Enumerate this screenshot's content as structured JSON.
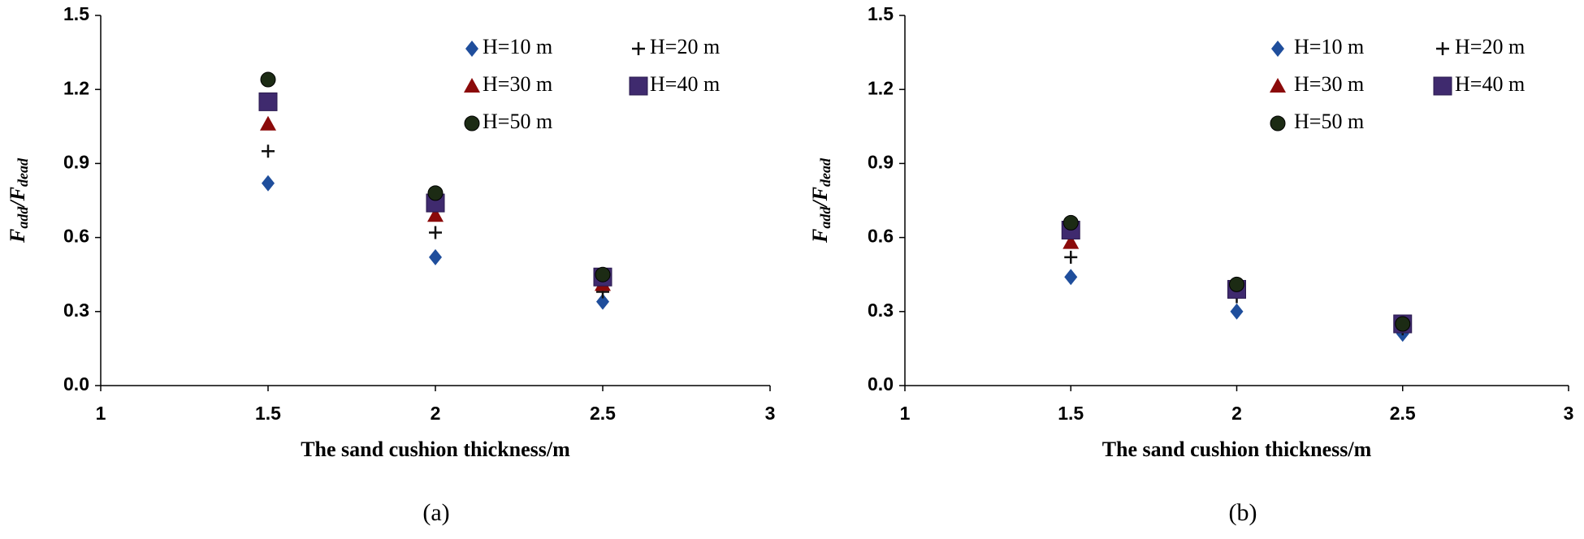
{
  "chart_data": [
    {
      "type": "scatter",
      "caption": "(a)",
      "xlabel": "The sand cushion thickness/m",
      "ylabel": [
        {
          "text": "F",
          "subscript": false
        },
        {
          "text": "add",
          "subscript": true
        },
        {
          "text": "/",
          "subscript": false
        },
        {
          "text": "F",
          "subscript": false
        },
        {
          "text": "dead",
          "subscript": true
        }
      ],
      "xlim": [
        1,
        3
      ],
      "xticks": [
        1,
        1.5,
        2,
        2.5,
        3
      ],
      "ylim": [
        0,
        1.5
      ],
      "yticks": [
        {
          "value": 0,
          "label": "0.0"
        },
        0.3,
        0.6,
        0.9,
        1.2,
        1.5
      ],
      "grid": false,
      "x": [
        1.5,
        2,
        2.5
      ],
      "series": [
        {
          "name": "H=10 m",
          "color": "#1f4e9c",
          "marker": "diamond",
          "values": [
            0.82,
            0.52,
            0.34
          ]
        },
        {
          "name": "H=20 m",
          "color": "#111111",
          "marker": "plus",
          "values": [
            0.95,
            0.62,
            0.38
          ]
        },
        {
          "name": "H=30 m",
          "color": "#8b0a0a",
          "marker": "triangle",
          "values": [
            1.06,
            0.69,
            0.41
          ]
        },
        {
          "name": "H=40 m",
          "color": "#3f2a6e",
          "marker": "square",
          "values": [
            1.15,
            0.74,
            0.44
          ]
        },
        {
          "name": "H=50 m",
          "color": "#1c2b14",
          "marker": "circle",
          "values": [
            1.24,
            0.78,
            0.45
          ]
        }
      ]
    },
    {
      "type": "scatter",
      "caption": "(b)",
      "xlabel": "The sand cushion thickness/m",
      "ylabel": [
        {
          "text": "F",
          "subscript": false
        },
        {
          "text": "add",
          "subscript": true
        },
        {
          "text": "/",
          "subscript": false
        },
        {
          "text": "F",
          "subscript": false
        },
        {
          "text": "dead",
          "subscript": true
        }
      ],
      "xlim": [
        1,
        3
      ],
      "xticks": [
        1,
        1.5,
        2,
        2.5,
        3
      ],
      "ylim": [
        0,
        1.5
      ],
      "yticks": [
        {
          "value": 0,
          "label": "0.0"
        },
        0.3,
        0.6,
        0.9,
        1.2,
        1.5
      ],
      "grid": false,
      "x": [
        1.5,
        2,
        2.5
      ],
      "series": [
        {
          "name": "H=10 m",
          "color": "#1f4e9c",
          "marker": "diamond",
          "values": [
            0.44,
            0.3,
            0.21
          ]
        },
        {
          "name": "H=20 m",
          "color": "#111111",
          "marker": "plus",
          "values": [
            0.52,
            0.36,
            0.23
          ]
        },
        {
          "name": "H=30 m",
          "color": "#8b0a0a",
          "marker": "triangle",
          "values": [
            0.58,
            0.38,
            0.24
          ]
        },
        {
          "name": "H=40 m",
          "color": "#3f2a6e",
          "marker": "square",
          "values": [
            0.63,
            0.39,
            0.25
          ]
        },
        {
          "name": "H=50 m",
          "color": "#1c2b14",
          "marker": "circle",
          "values": [
            0.66,
            0.41,
            0.25
          ]
        }
      ]
    }
  ]
}
